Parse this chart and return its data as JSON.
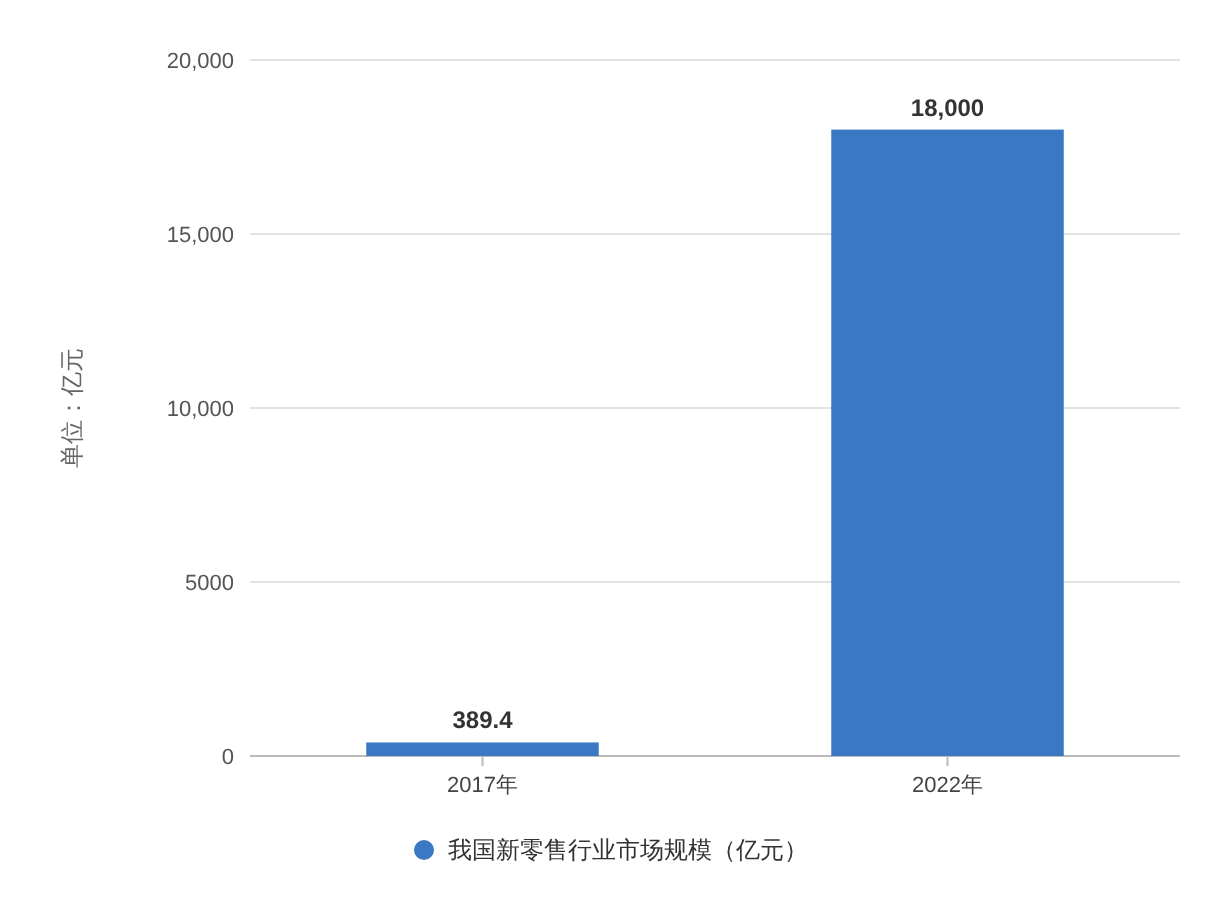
{
  "chart_data": {
    "type": "bar",
    "ylabel": "单位：亿元",
    "categories": [
      "2017年",
      "2022年"
    ],
    "series": [
      {
        "name": "我国新零售行业市场规模（亿元）",
        "color": "#3a78c3",
        "values": [
          389.4,
          18000
        ],
        "value_labels": [
          "389.4",
          "18,000"
        ]
      }
    ],
    "ylim": [
      0,
      20000
    ],
    "yticks": [
      0,
      5000,
      {
        "value": 10000,
        "label": "10,000"
      },
      {
        "value": 15000,
        "label": "15,000"
      },
      {
        "value": 20000,
        "label": "20,000"
      }
    ],
    "grid": "y",
    "legend": "bottom"
  }
}
